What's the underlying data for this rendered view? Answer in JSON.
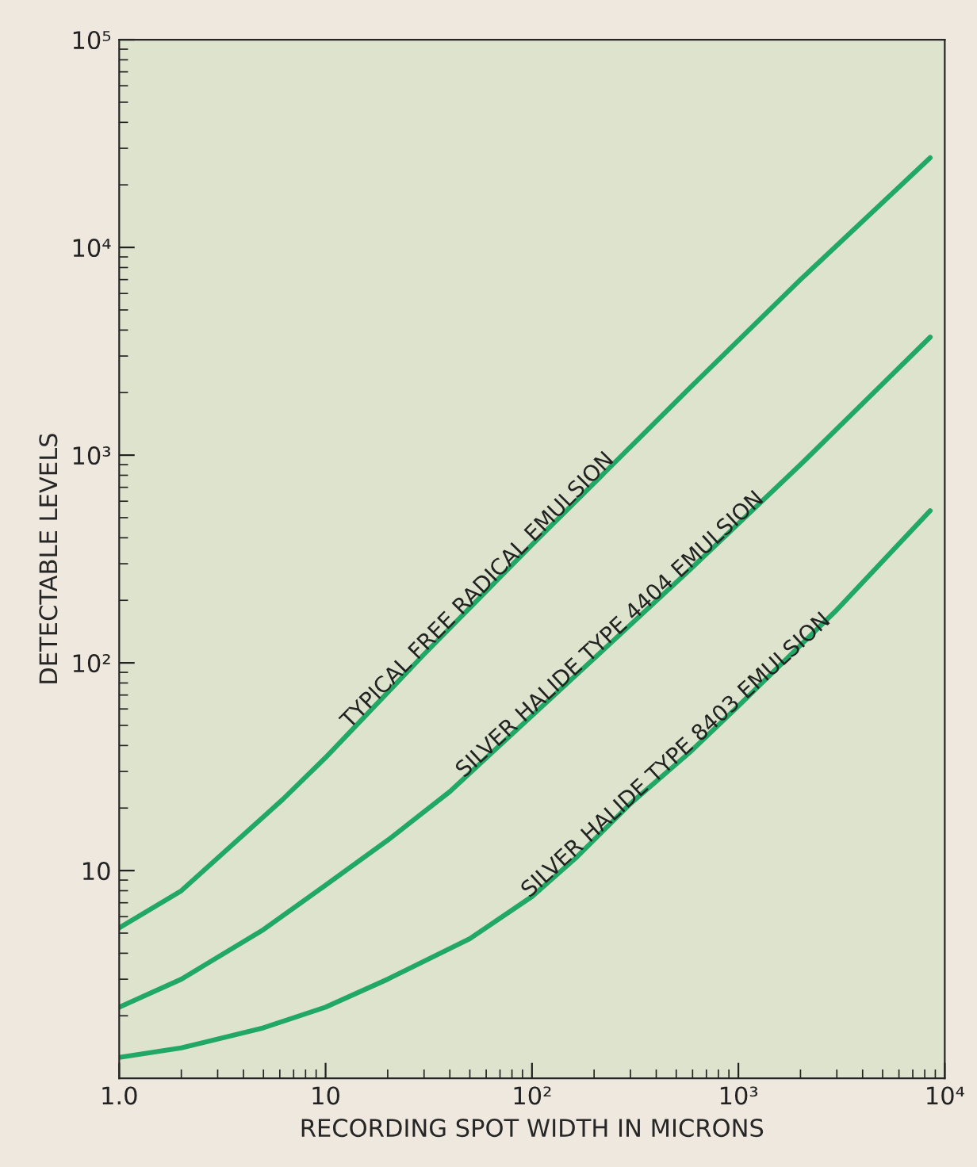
{
  "chart_data": {
    "type": "line",
    "xlabel": "RECORDING SPOT WIDTH IN MICRONS",
    "ylabel": "DETECTABLE LEVELS",
    "log": "xy",
    "grid": false,
    "legend": false,
    "marker": "none",
    "line_style": "solid",
    "xlim": [
      1,
      10000
    ],
    "ylim": [
      1,
      100000
    ],
    "xticks": [
      {
        "value": 1,
        "label": "1.0"
      },
      10,
      {
        "value": 100,
        "label": "10²"
      },
      {
        "value": 1000,
        "label": "10³"
      },
      {
        "value": 10000,
        "label": "10⁴"
      }
    ],
    "yticks": [
      10,
      {
        "value": 100,
        "label": "10²"
      },
      {
        "value": 1000,
        "label": "10³"
      },
      {
        "value": 10000,
        "label": "10⁴"
      },
      {
        "value": 100000,
        "label": "10⁵"
      }
    ],
    "series": [
      {
        "name": "TYPICAL FREE RADICAL EMULSION",
        "color": "#22a866",
        "x": [
          1,
          2,
          3,
          6.2,
          10,
          30,
          100,
          580,
          2000,
          8500
        ],
        "values": [
          5.3,
          8,
          11.5,
          22,
          35,
          110,
          370,
          2100,
          7000,
          27000
        ]
      },
      {
        "name": "SILVER HALIDE TYPE 4404 EMULSION",
        "color": "#22a866",
        "x": [
          1,
          2,
          5,
          10,
          20,
          40,
          64,
          200,
          580,
          2000,
          8500
        ],
        "values": [
          2.2,
          3.0,
          5.2,
          8.5,
          14,
          24,
          37,
          105,
          280,
          900,
          3700
        ]
      },
      {
        "name": "SILVER HALIDE TYPE 8403 EMULSION",
        "color": "#22a866",
        "x": [
          1,
          2,
          5,
          10,
          20,
          50,
          100,
          163,
          300,
          580,
          1000,
          3000,
          8500
        ],
        "values": [
          1.26,
          1.4,
          1.75,
          2.2,
          3.0,
          4.7,
          7.5,
          11.5,
          21,
          37,
          62,
          180,
          540
        ]
      }
    ]
  }
}
